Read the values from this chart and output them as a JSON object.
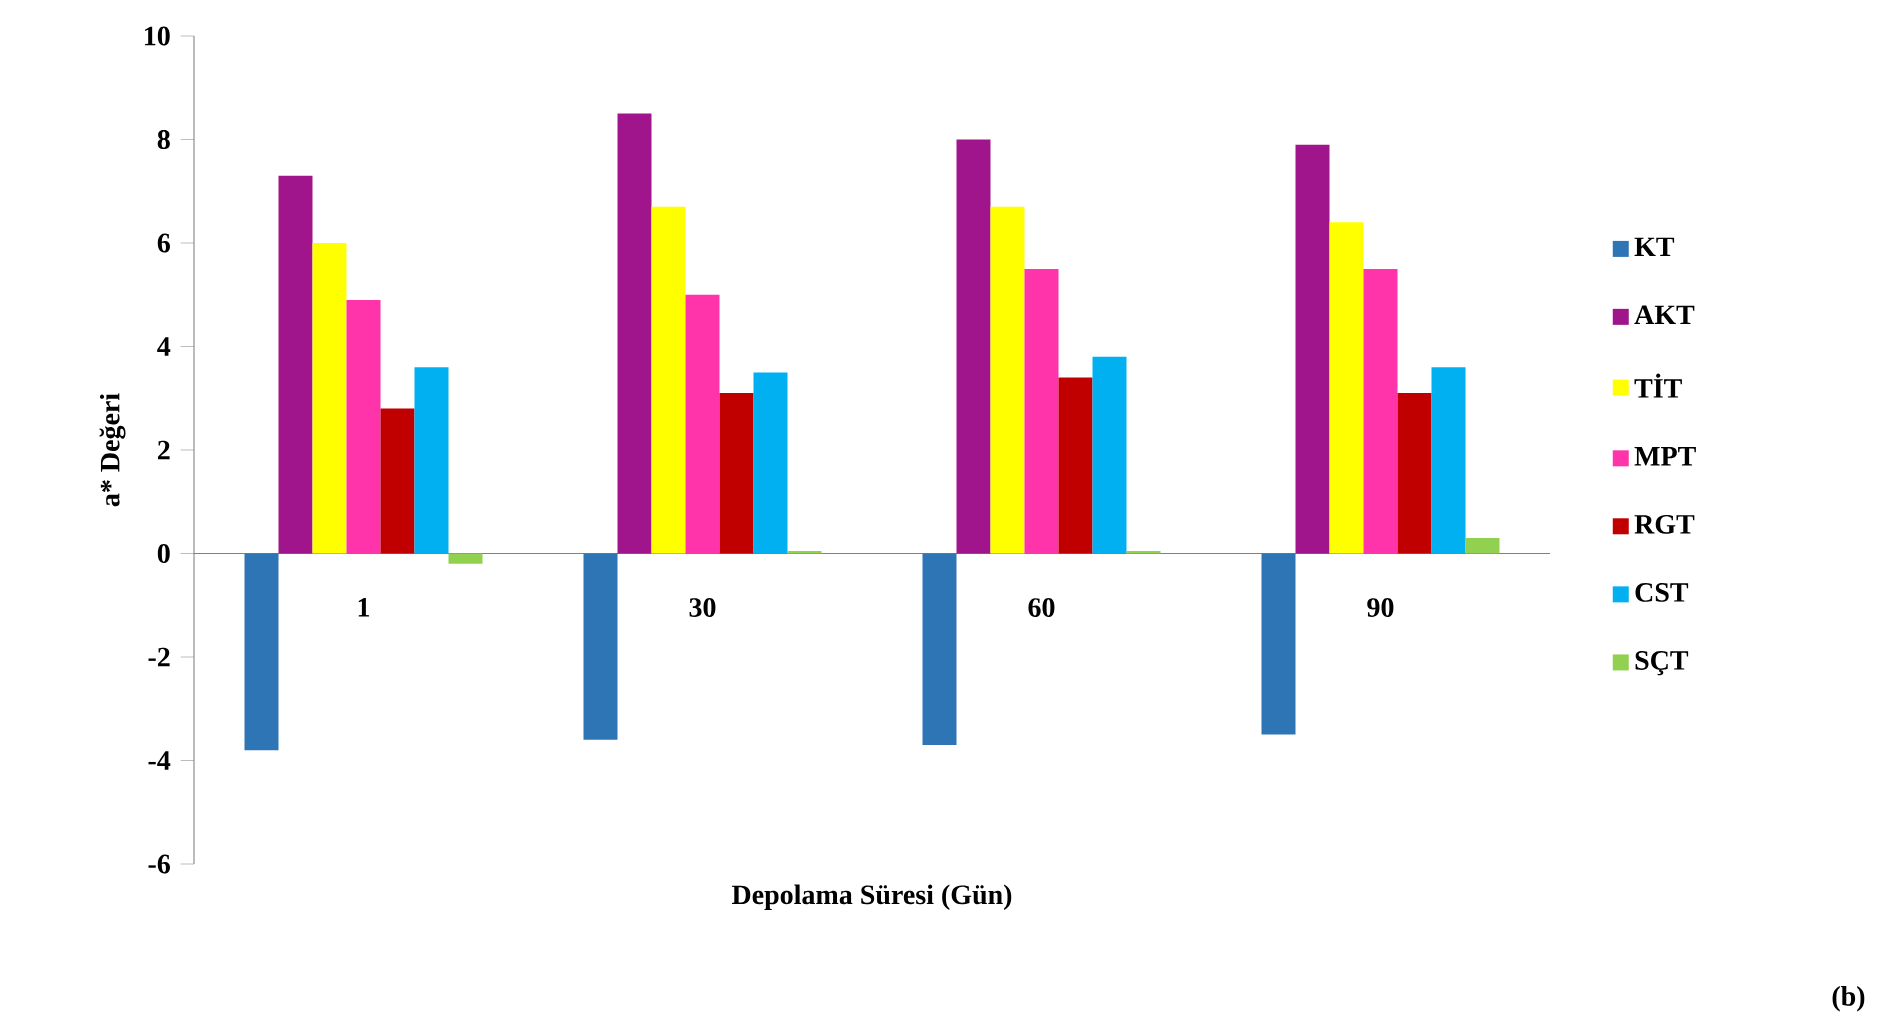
{
  "chart_data": {
    "type": "bar",
    "xlabel": "Depolama Süresi (Gün)",
    "ylabel": "a* Değeri",
    "categories": [
      "1",
      "30",
      "60",
      "90"
    ],
    "series": [
      {
        "name": "KT",
        "color": "#2e75b6",
        "values": [
          -3.8,
          -3.6,
          -3.7,
          -3.5
        ]
      },
      {
        "name": "AKT",
        "color": "#a0148c",
        "values": [
          7.3,
          8.5,
          8.0,
          7.9
        ]
      },
      {
        "name": "TİT",
        "color": "#ffff00",
        "values": [
          6.0,
          6.7,
          6.7,
          6.4
        ]
      },
      {
        "name": "MPT",
        "color": "#ff33aa",
        "values": [
          4.9,
          5.0,
          5.5,
          5.5
        ]
      },
      {
        "name": "RGT",
        "color": "#c00000",
        "values": [
          2.8,
          3.1,
          3.4,
          3.1
        ]
      },
      {
        "name": "CST",
        "color": "#00b0f0",
        "values": [
          3.6,
          3.5,
          3.8,
          3.6
        ]
      },
      {
        "name": "SÇT",
        "color": "#92d050",
        "values": [
          -0.2,
          0.05,
          0.05,
          0.3
        ]
      }
    ],
    "ylim": [
      -6,
      10
    ],
    "yticks": [
      -6,
      -4,
      -2,
      0,
      2,
      4,
      6,
      8,
      10
    ],
    "legend": "right",
    "annotations": [
      "(b)"
    ]
  }
}
